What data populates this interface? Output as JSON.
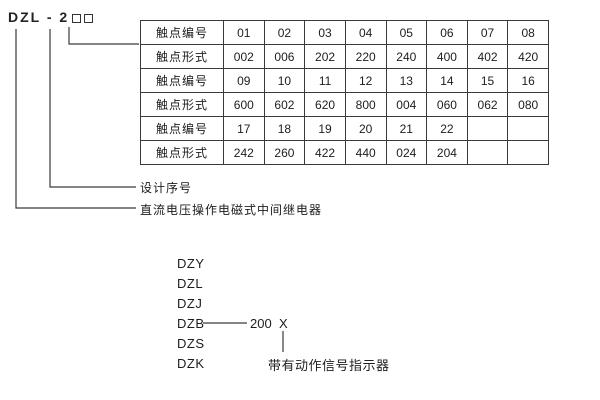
{
  "model": {
    "prefix": "DZL - 2"
  },
  "table": {
    "rows": [
      {
        "header": "触点编号",
        "cells": [
          "01",
          "02",
          "03",
          "04",
          "05",
          "06",
          "07",
          "08"
        ]
      },
      {
        "header": "触点形式",
        "cells": [
          "002",
          "006",
          "202",
          "220",
          "240",
          "400",
          "402",
          "420"
        ]
      },
      {
        "header": "触点编号",
        "cells": [
          "09",
          "10",
          "11",
          "12",
          "13",
          "14",
          "15",
          "16"
        ]
      },
      {
        "header": "触点形式",
        "cells": [
          "600",
          "602",
          "620",
          "800",
          "004",
          "060",
          "062",
          "080"
        ]
      },
      {
        "header": "触点编号",
        "cells": [
          "17",
          "18",
          "19",
          "20",
          "21",
          "22",
          "",
          ""
        ]
      },
      {
        "header": "触点形式",
        "cells": [
          "242",
          "260",
          "422",
          "440",
          "024",
          "204",
          "",
          ""
        ]
      }
    ]
  },
  "labels": {
    "design_serial": "设计序号",
    "relay_description": "直流电压操作电磁式中间继电器"
  },
  "legend": {
    "models": [
      "DZY",
      "DZL",
      "DZJ",
      "DZB",
      "DZS",
      "DZK"
    ],
    "example_number": "200",
    "example_suffix": "X",
    "indicator_note": "带有动作信号指示器"
  },
  "colors": {
    "line": "#3a3a3a",
    "text": "#1d1d1d",
    "background": "#ffffff"
  }
}
